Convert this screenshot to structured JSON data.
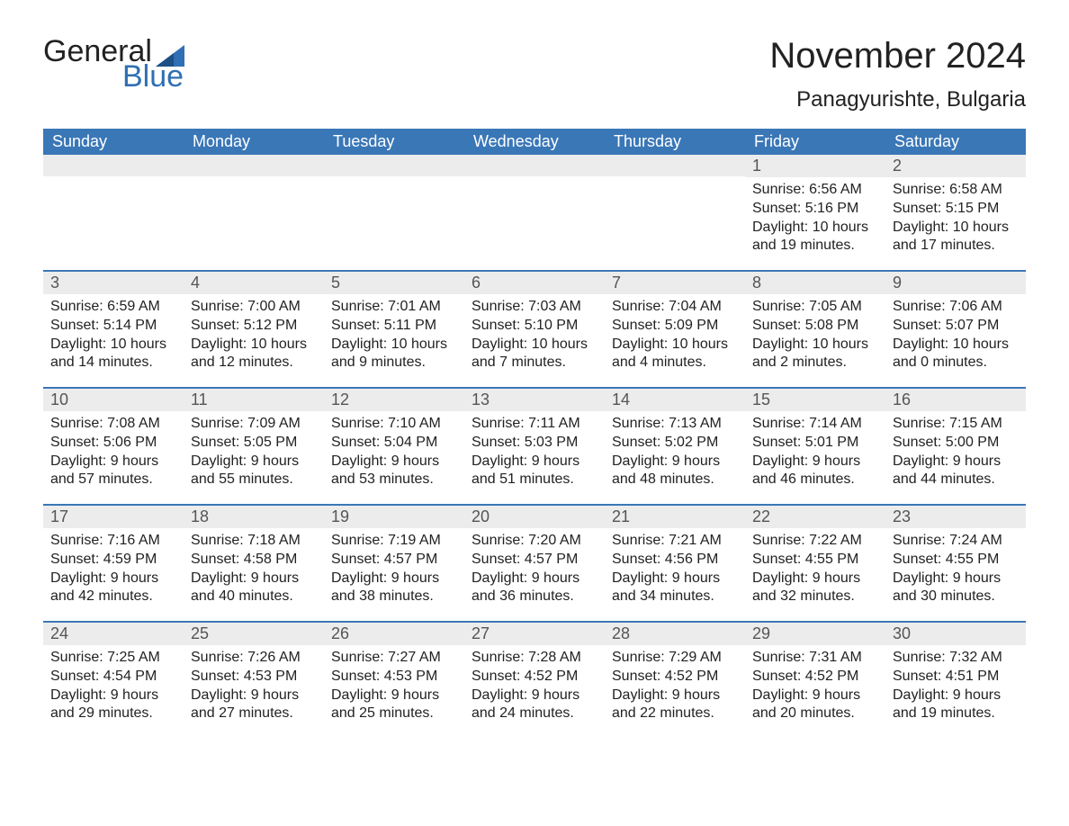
{
  "logo": {
    "general": "General",
    "blue": "Blue"
  },
  "title": "November 2024",
  "location": "Panagyurishte, Bulgaria",
  "colors": {
    "header_bg": "#3a77b7",
    "date_bar_bg": "#ececec",
    "logo_blue": "#2f6fb3",
    "text": "#222222",
    "background": "#ffffff"
  },
  "day_names": [
    "Sunday",
    "Monday",
    "Tuesday",
    "Wednesday",
    "Thursday",
    "Friday",
    "Saturday"
  ],
  "weeks": [
    [
      null,
      null,
      null,
      null,
      null,
      {
        "d": "1",
        "sunrise": "Sunrise: 6:56 AM",
        "sunset": "Sunset: 5:16 PM",
        "dl1": "Daylight: 10 hours",
        "dl2": "and 19 minutes."
      },
      {
        "d": "2",
        "sunrise": "Sunrise: 6:58 AM",
        "sunset": "Sunset: 5:15 PM",
        "dl1": "Daylight: 10 hours",
        "dl2": "and 17 minutes."
      }
    ],
    [
      {
        "d": "3",
        "sunrise": "Sunrise: 6:59 AM",
        "sunset": "Sunset: 5:14 PM",
        "dl1": "Daylight: 10 hours",
        "dl2": "and 14 minutes."
      },
      {
        "d": "4",
        "sunrise": "Sunrise: 7:00 AM",
        "sunset": "Sunset: 5:12 PM",
        "dl1": "Daylight: 10 hours",
        "dl2": "and 12 minutes."
      },
      {
        "d": "5",
        "sunrise": "Sunrise: 7:01 AM",
        "sunset": "Sunset: 5:11 PM",
        "dl1": "Daylight: 10 hours",
        "dl2": "and 9 minutes."
      },
      {
        "d": "6",
        "sunrise": "Sunrise: 7:03 AM",
        "sunset": "Sunset: 5:10 PM",
        "dl1": "Daylight: 10 hours",
        "dl2": "and 7 minutes."
      },
      {
        "d": "7",
        "sunrise": "Sunrise: 7:04 AM",
        "sunset": "Sunset: 5:09 PM",
        "dl1": "Daylight: 10 hours",
        "dl2": "and 4 minutes."
      },
      {
        "d": "8",
        "sunrise": "Sunrise: 7:05 AM",
        "sunset": "Sunset: 5:08 PM",
        "dl1": "Daylight: 10 hours",
        "dl2": "and 2 minutes."
      },
      {
        "d": "9",
        "sunrise": "Sunrise: 7:06 AM",
        "sunset": "Sunset: 5:07 PM",
        "dl1": "Daylight: 10 hours",
        "dl2": "and 0 minutes."
      }
    ],
    [
      {
        "d": "10",
        "sunrise": "Sunrise: 7:08 AM",
        "sunset": "Sunset: 5:06 PM",
        "dl1": "Daylight: 9 hours",
        "dl2": "and 57 minutes."
      },
      {
        "d": "11",
        "sunrise": "Sunrise: 7:09 AM",
        "sunset": "Sunset: 5:05 PM",
        "dl1": "Daylight: 9 hours",
        "dl2": "and 55 minutes."
      },
      {
        "d": "12",
        "sunrise": "Sunrise: 7:10 AM",
        "sunset": "Sunset: 5:04 PM",
        "dl1": "Daylight: 9 hours",
        "dl2": "and 53 minutes."
      },
      {
        "d": "13",
        "sunrise": "Sunrise: 7:11 AM",
        "sunset": "Sunset: 5:03 PM",
        "dl1": "Daylight: 9 hours",
        "dl2": "and 51 minutes."
      },
      {
        "d": "14",
        "sunrise": "Sunrise: 7:13 AM",
        "sunset": "Sunset: 5:02 PM",
        "dl1": "Daylight: 9 hours",
        "dl2": "and 48 minutes."
      },
      {
        "d": "15",
        "sunrise": "Sunrise: 7:14 AM",
        "sunset": "Sunset: 5:01 PM",
        "dl1": "Daylight: 9 hours",
        "dl2": "and 46 minutes."
      },
      {
        "d": "16",
        "sunrise": "Sunrise: 7:15 AM",
        "sunset": "Sunset: 5:00 PM",
        "dl1": "Daylight: 9 hours",
        "dl2": "and 44 minutes."
      }
    ],
    [
      {
        "d": "17",
        "sunrise": "Sunrise: 7:16 AM",
        "sunset": "Sunset: 4:59 PM",
        "dl1": "Daylight: 9 hours",
        "dl2": "and 42 minutes."
      },
      {
        "d": "18",
        "sunrise": "Sunrise: 7:18 AM",
        "sunset": "Sunset: 4:58 PM",
        "dl1": "Daylight: 9 hours",
        "dl2": "and 40 minutes."
      },
      {
        "d": "19",
        "sunrise": "Sunrise: 7:19 AM",
        "sunset": "Sunset: 4:57 PM",
        "dl1": "Daylight: 9 hours",
        "dl2": "and 38 minutes."
      },
      {
        "d": "20",
        "sunrise": "Sunrise: 7:20 AM",
        "sunset": "Sunset: 4:57 PM",
        "dl1": "Daylight: 9 hours",
        "dl2": "and 36 minutes."
      },
      {
        "d": "21",
        "sunrise": "Sunrise: 7:21 AM",
        "sunset": "Sunset: 4:56 PM",
        "dl1": "Daylight: 9 hours",
        "dl2": "and 34 minutes."
      },
      {
        "d": "22",
        "sunrise": "Sunrise: 7:22 AM",
        "sunset": "Sunset: 4:55 PM",
        "dl1": "Daylight: 9 hours",
        "dl2": "and 32 minutes."
      },
      {
        "d": "23",
        "sunrise": "Sunrise: 7:24 AM",
        "sunset": "Sunset: 4:55 PM",
        "dl1": "Daylight: 9 hours",
        "dl2": "and 30 minutes."
      }
    ],
    [
      {
        "d": "24",
        "sunrise": "Sunrise: 7:25 AM",
        "sunset": "Sunset: 4:54 PM",
        "dl1": "Daylight: 9 hours",
        "dl2": "and 29 minutes."
      },
      {
        "d": "25",
        "sunrise": "Sunrise: 7:26 AM",
        "sunset": "Sunset: 4:53 PM",
        "dl1": "Daylight: 9 hours",
        "dl2": "and 27 minutes."
      },
      {
        "d": "26",
        "sunrise": "Sunrise: 7:27 AM",
        "sunset": "Sunset: 4:53 PM",
        "dl1": "Daylight: 9 hours",
        "dl2": "and 25 minutes."
      },
      {
        "d": "27",
        "sunrise": "Sunrise: 7:28 AM",
        "sunset": "Sunset: 4:52 PM",
        "dl1": "Daylight: 9 hours",
        "dl2": "and 24 minutes."
      },
      {
        "d": "28",
        "sunrise": "Sunrise: 7:29 AM",
        "sunset": "Sunset: 4:52 PM",
        "dl1": "Daylight: 9 hours",
        "dl2": "and 22 minutes."
      },
      {
        "d": "29",
        "sunrise": "Sunrise: 7:31 AM",
        "sunset": "Sunset: 4:52 PM",
        "dl1": "Daylight: 9 hours",
        "dl2": "and 20 minutes."
      },
      {
        "d": "30",
        "sunrise": "Sunrise: 7:32 AM",
        "sunset": "Sunset: 4:51 PM",
        "dl1": "Daylight: 9 hours",
        "dl2": "and 19 minutes."
      }
    ]
  ]
}
